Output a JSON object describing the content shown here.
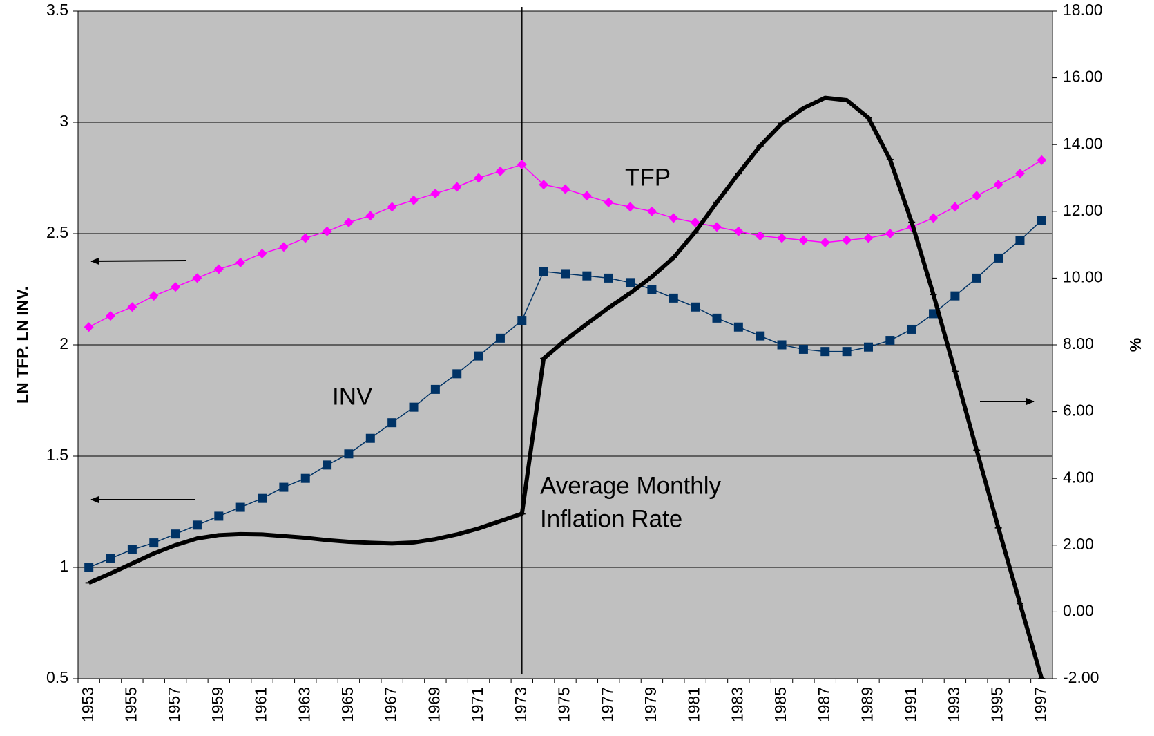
{
  "chart_data": {
    "type": "line",
    "y_label": "LN TFP. LN INV.",
    "y2_label": "%",
    "categories": [
      "1953",
      null,
      "1955",
      null,
      "1957",
      null,
      "1959",
      null,
      "1961",
      null,
      "1963",
      null,
      "1965",
      null,
      "1967",
      null,
      "1969",
      null,
      "1971",
      null,
      "1973",
      null,
      "1975",
      null,
      "1977",
      null,
      "1979",
      null,
      "1981",
      null,
      "1983",
      null,
      "1985",
      null,
      "1987",
      null,
      "1989",
      null,
      "1991",
      null,
      "1993",
      null,
      "1995",
      null,
      "1997"
    ],
    "ylim": [
      0.5,
      3.5
    ],
    "yticks": [
      0.5,
      1,
      1.5,
      2,
      2.5,
      3,
      3.5
    ],
    "y2lim": [
      -2,
      18
    ],
    "y2ticks": [
      {
        "value": -2,
        "label": "-2.00"
      },
      {
        "value": 0,
        "label": "0.00"
      },
      {
        "value": 2,
        "label": "2.00"
      },
      {
        "value": 4,
        "label": "4.00"
      },
      {
        "value": 6,
        "label": "6.00"
      },
      {
        "value": 8,
        "label": "8.00"
      },
      {
        "value": 10,
        "label": "10.00"
      },
      {
        "value": 12,
        "label": "12.00"
      },
      {
        "value": 14,
        "label": "14.00"
      },
      {
        "value": 16,
        "label": "16.00"
      },
      {
        "value": 18,
        "label": "18.00"
      }
    ],
    "grid": true,
    "background": "#c0c0c0",
    "series": [
      {
        "name": "TFP",
        "color": "#ff00ff",
        "marker": "diamond",
        "values": [
          2.08,
          2.13,
          2.17,
          2.22,
          2.26,
          2.3,
          2.34,
          2.37,
          2.41,
          2.44,
          2.48,
          2.51,
          2.55,
          2.58,
          2.62,
          2.65,
          2.68,
          2.71,
          2.75,
          2.78,
          2.81,
          2.72,
          2.7,
          2.67,
          2.64,
          2.62,
          2.6,
          2.57,
          2.55,
          2.53,
          2.51,
          2.49,
          2.48,
          2.47,
          2.46,
          2.47,
          2.48,
          2.5,
          2.53,
          2.57,
          2.62,
          2.67,
          2.72,
          2.77,
          2.83
        ]
      },
      {
        "name": "INV",
        "color": "#003366",
        "marker": "square",
        "values": [
          1.0,
          1.04,
          1.08,
          1.11,
          1.15,
          1.19,
          1.23,
          1.27,
          1.31,
          1.36,
          1.4,
          1.46,
          1.51,
          1.58,
          1.65,
          1.72,
          1.8,
          1.87,
          1.95,
          2.03,
          2.11,
          2.33,
          2.32,
          2.31,
          2.3,
          2.28,
          2.25,
          2.21,
          2.17,
          2.12,
          2.08,
          2.04,
          2.0,
          1.98,
          1.97,
          1.97,
          1.99,
          2.02,
          2.07,
          2.14,
          2.22,
          2.3,
          2.39,
          2.47,
          2.56
        ]
      },
      {
        "label_lines": [
          "Average Monthly",
          "Inflation Rate"
        ],
        "color": "#000000",
        "marker": "dash",
        "axis": "y2",
        "values": [
          0.87,
          1.15,
          1.45,
          1.75,
          2.0,
          2.2,
          2.3,
          2.33,
          2.32,
          2.27,
          2.22,
          2.15,
          2.1,
          2.07,
          2.05,
          2.08,
          2.18,
          2.32,
          2.5,
          2.72,
          2.94,
          7.59,
          8.14,
          8.63,
          9.11,
          9.55,
          10.04,
          10.61,
          11.38,
          12.27,
          13.13,
          13.96,
          14.63,
          15.09,
          15.4,
          15.33,
          14.8,
          13.55,
          11.67,
          9.51,
          7.2,
          4.84,
          2.52,
          0.25,
          -2.0
        ]
      }
    ]
  }
}
